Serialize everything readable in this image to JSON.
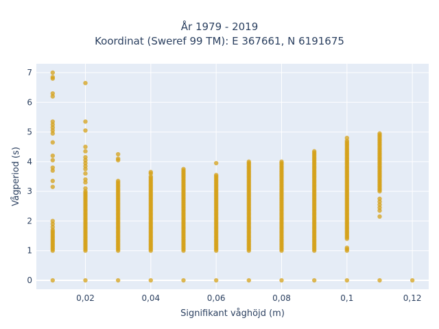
{
  "chart_data": {
    "type": "scatter",
    "title": "År 1979 - 2019",
    "subtitle": "Koordinat (Sweref 99 TM): E 367661, N 6191675",
    "xlabel": "Signifikant våghöjd (m)",
    "ylabel": "Vågperiod (s)",
    "xlim": [
      0.005,
      0.125
    ],
    "ylim": [
      -0.3,
      7.3
    ],
    "xticks": [
      0.02,
      0.04,
      0.06,
      0.08,
      0.1,
      0.12
    ],
    "xtick_labels": [
      "0,02",
      "0,04",
      "0,06",
      "0,08",
      "0,1",
      "0,12"
    ],
    "yticks": [
      0,
      1,
      2,
      3,
      4,
      5,
      6,
      7
    ],
    "ytick_labels": [
      "0",
      "1",
      "2",
      "3",
      "4",
      "5",
      "6",
      "7"
    ],
    "grid": true,
    "marker_color": "#d4a017",
    "plot_background": "#e5ecf6",
    "series": [
      {
        "columns": [
          {
            "x": 0.01,
            "ranges": [
              [
                1.0,
                1.7
              ]
            ],
            "extra": [
              0,
              1.8,
              1.9,
              2.0,
              3.15,
              3.35,
              3.7,
              3.8,
              4.05,
              4.2,
              4.65,
              4.95,
              5.05,
              5.15,
              5.25,
              5.35,
              6.2,
              6.3,
              6.8,
              6.85,
              7.0
            ]
          },
          {
            "x": 0.02,
            "ranges": [
              [
                1.0,
                3.0
              ]
            ],
            "extra": [
              0,
              3.1,
              3.3,
              3.4,
              3.6,
              3.75,
              3.85,
              3.95,
              4.05,
              4.15,
              4.35,
              4.5,
              5.05,
              5.35,
              6.65
            ]
          },
          {
            "x": 0.03,
            "ranges": [
              [
                1.0,
                3.35
              ]
            ],
            "extra": [
              0,
              4.05,
              4.1,
              4.25
            ]
          },
          {
            "x": 0.04,
            "ranges": [
              [
                1.0,
                3.5
              ]
            ],
            "extra": [
              0,
              3.6,
              3.65
            ]
          },
          {
            "x": 0.05,
            "ranges": [
              [
                1.0,
                3.65
              ]
            ],
            "extra": [
              0,
              3.7,
              3.75
            ]
          },
          {
            "x": 0.06,
            "ranges": [
              [
                1.0,
                3.55
              ]
            ],
            "extra": [
              0,
              3.95
            ]
          },
          {
            "x": 0.07,
            "ranges": [
              [
                1.0,
                4.0
              ]
            ],
            "extra": [
              0
            ]
          },
          {
            "x": 0.08,
            "ranges": [
              [
                1.0,
                4.0
              ]
            ],
            "extra": [
              0
            ]
          },
          {
            "x": 0.09,
            "ranges": [
              [
                1.0,
                4.25
              ]
            ],
            "extra": [
              0,
              4.3,
              4.35
            ]
          },
          {
            "x": 0.1,
            "ranges": [
              [
                1.4,
                4.7
              ]
            ],
            "extra": [
              0,
              1.0,
              1.05,
              1.1,
              4.8
            ]
          },
          {
            "x": 0.11,
            "ranges": [
              [
                3.0,
                4.95
              ]
            ],
            "extra": [
              0,
              2.15,
              2.35,
              2.45,
              2.55,
              2.65,
              2.75
            ]
          },
          {
            "x": 0.12,
            "ranges": [],
            "extra": [
              0
            ]
          }
        ]
      }
    ]
  }
}
